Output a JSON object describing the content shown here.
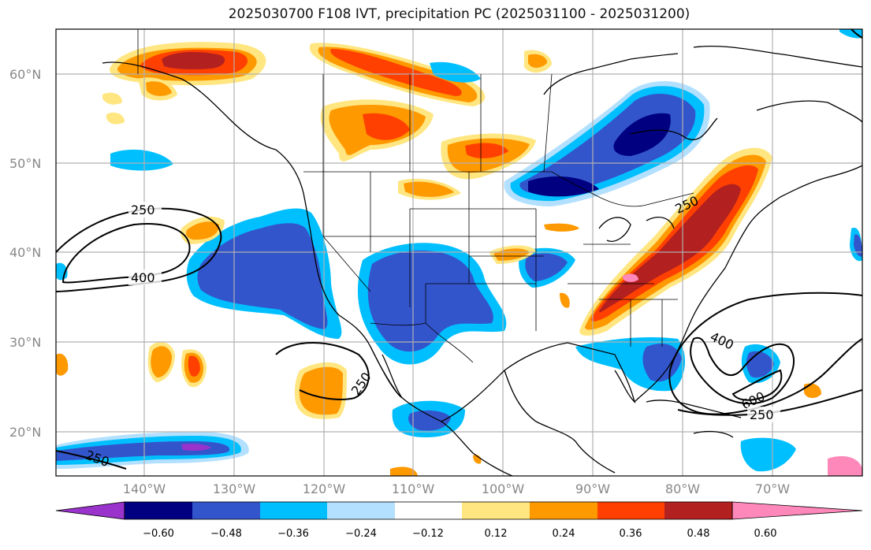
{
  "title": "2025030700 F108 IVT, precipitation PC (2025031100 - 2025031200)",
  "lat_labels": [
    "60°N",
    "50°N",
    "40°N",
    "30°N",
    "20°N"
  ],
  "lon_labels": [
    "140°W",
    "130°W",
    "120°W",
    "110°W",
    "100°W",
    "90°W",
    "80°W",
    "70°W"
  ],
  "colorbar": {
    "ticks": [
      "−0.60",
      "−0.48",
      "−0.36",
      "−0.24",
      "−0.12",
      "0.12",
      "0.24",
      "0.36",
      "0.48",
      "0.60"
    ],
    "colors": [
      "#9933cc",
      "#000080",
      "#3355cc",
      "#00bfff",
      "#b3e0ff",
      "#ffffff",
      "#ffe680",
      "#ff9900",
      "#ff4000",
      "#b32020",
      "#ff88bb"
    ]
  },
  "contour_labels": [
    "250",
    "400",
    "250",
    "400",
    "600",
    "250",
    "250",
    "250"
  ]
}
